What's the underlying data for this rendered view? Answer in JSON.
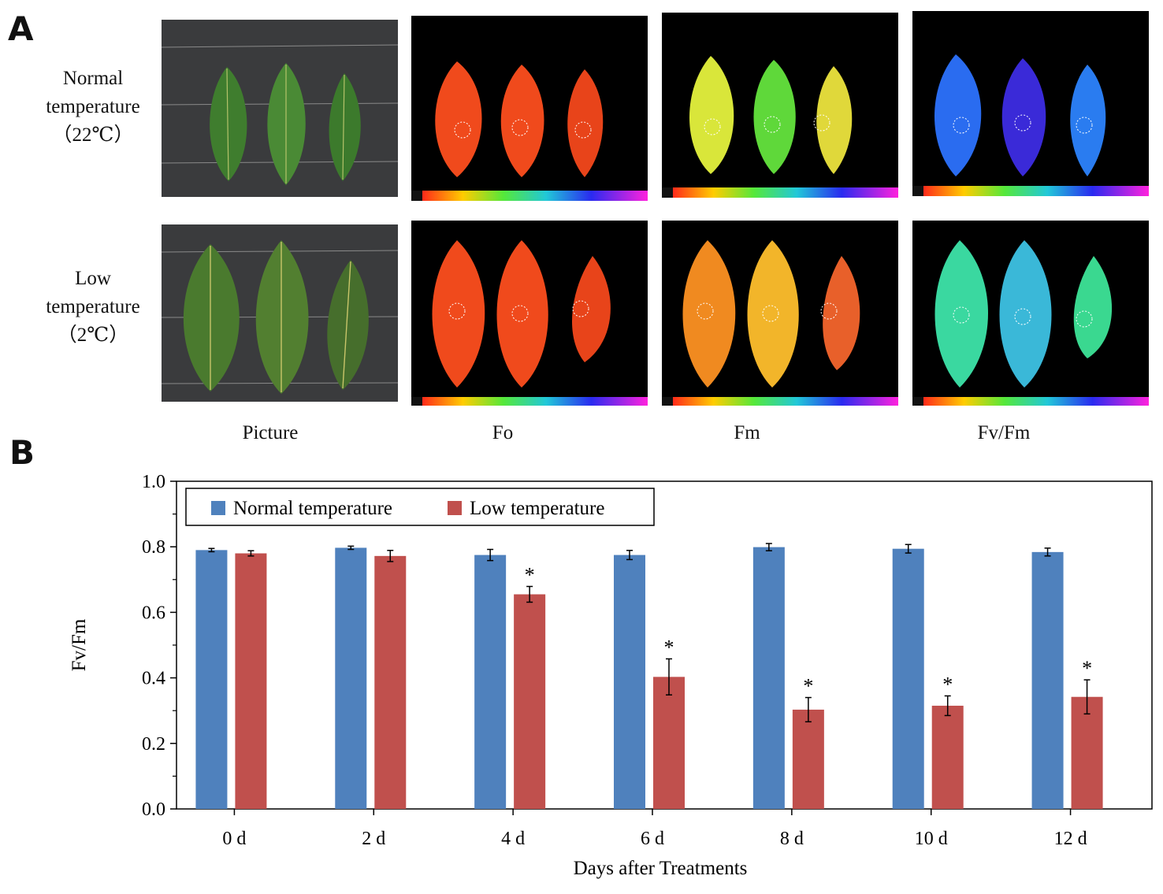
{
  "panel_a": {
    "letter": "A",
    "rows": [
      {
        "line1": "Normal",
        "line2": "temperature",
        "line3": "（22℃）"
      },
      {
        "line1": "Low",
        "line2": "temperature",
        "line3": "（2℃）"
      }
    ],
    "columns": [
      "Picture",
      "Fo",
      "Fm",
      "Fv/Fm"
    ],
    "colors": {
      "photo_bg": "#3a3b3d",
      "leaf_green": "#3f7d2e",
      "fo": "#f04a1c",
      "fm_normal": [
        "#d9e63a",
        "#5fd83a",
        "#e0d83a"
      ],
      "fm_low": [
        "#f08a20",
        "#f2b52a",
        "#e8602a"
      ],
      "fvfm_normal": [
        "#2a6cf0",
        "#3a2ad8",
        "#2a7cf0"
      ],
      "fvfm_low": [
        "#3ad8a0",
        "#3ab8d8",
        "#3ad890"
      ]
    }
  },
  "panel_b": {
    "letter": "B"
  },
  "chart_data": {
    "type": "bar",
    "categories": [
      "0 d",
      "2 d",
      "4 d",
      "6 d",
      "8 d",
      "10 d",
      "12 d"
    ],
    "series": [
      {
        "name": "Normal temperature",
        "color": "#4f81bd",
        "values": [
          0.79,
          0.797,
          0.775,
          0.775,
          0.799,
          0.794,
          0.784
        ],
        "errors": [
          0.005,
          0.005,
          0.017,
          0.014,
          0.011,
          0.013,
          0.012
        ]
      },
      {
        "name": "Low temperature",
        "color": "#c0504d",
        "values": [
          0.78,
          0.772,
          0.655,
          0.403,
          0.303,
          0.315,
          0.342
        ],
        "errors": [
          0.008,
          0.017,
          0.024,
          0.055,
          0.037,
          0.03,
          0.052
        ]
      }
    ],
    "significance": [
      null,
      null,
      "*",
      "*",
      "*",
      "*",
      "*"
    ],
    "xlabel": "Days after Treatments",
    "ylabel": "Fv/Fm",
    "ylim": [
      0.0,
      1.0
    ],
    "yticks": [
      "0.0",
      "0.2",
      "0.4",
      "0.6",
      "0.8",
      "1.0"
    ],
    "legend_position": "top-left"
  }
}
